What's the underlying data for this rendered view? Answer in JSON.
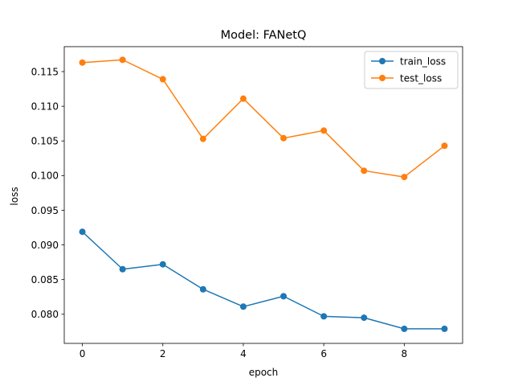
{
  "chart_data": {
    "type": "line",
    "title": "Model: FANetQ",
    "xlabel": "epoch",
    "ylabel": "loss",
    "x": [
      0,
      1,
      2,
      3,
      4,
      5,
      6,
      7,
      8,
      9
    ],
    "xticks": [
      0,
      2,
      4,
      6,
      8
    ],
    "xlim": [
      -0.45,
      9.45
    ],
    "yticks": [
      0.08,
      0.085,
      0.09,
      0.095,
      0.1,
      0.105,
      0.11,
      0.115
    ],
    "ytick_labels": [
      "0.080",
      "0.085",
      "0.090",
      "0.095",
      "0.100",
      "0.105",
      "0.110",
      "0.115"
    ],
    "ylim": [
      0.0758,
      0.1186
    ],
    "grid": false,
    "legend_position": "upper right",
    "series": [
      {
        "name": "train_loss",
        "color": "#1f77b4",
        "marker": "circle",
        "values": [
          0.0919,
          0.0865,
          0.0872,
          0.0836,
          0.0811,
          0.0826,
          0.0797,
          0.0795,
          0.0779,
          0.0779
        ]
      },
      {
        "name": "test_loss",
        "color": "#ff7f0e",
        "marker": "circle",
        "values": [
          0.1163,
          0.1167,
          0.1139,
          0.1053,
          0.1111,
          0.1054,
          0.1065,
          0.1007,
          0.0998,
          0.1043
        ]
      }
    ]
  }
}
